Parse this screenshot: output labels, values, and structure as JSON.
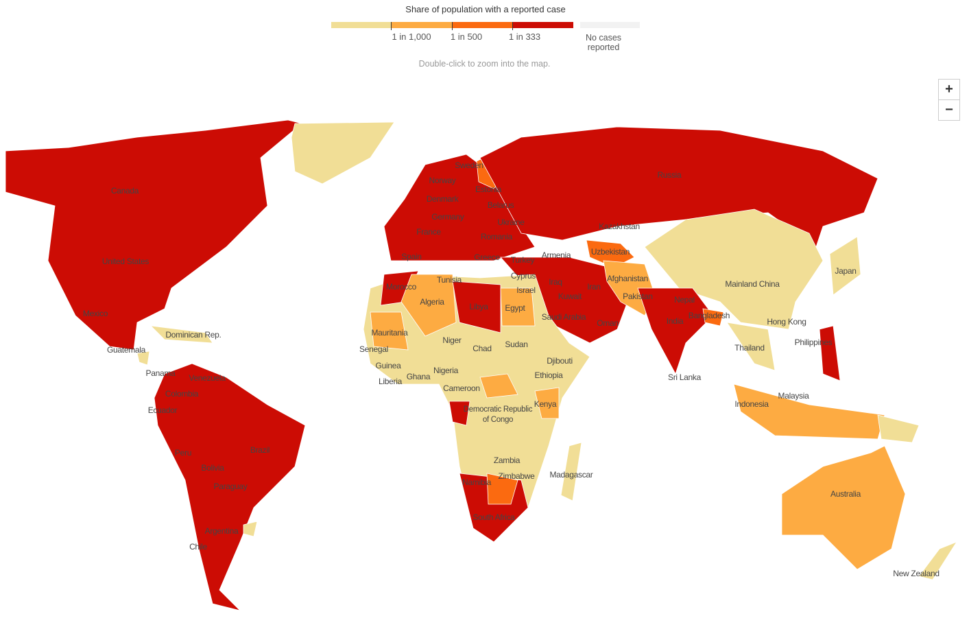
{
  "legend": {
    "title": "Share of population with a reported case",
    "ticks": [
      "1 in 1,000",
      "1 in 500",
      "1 in 333"
    ],
    "no_data": "No cases reported"
  },
  "note": "Double-click to zoom into the map.",
  "zoom": [
    "+",
    "−"
  ],
  "labels": [
    "Canada",
    "United States",
    "Mexico",
    "Guatemala",
    "Dominican Rep.",
    "Panama",
    "Venezuela",
    "Colombia",
    "Ecuador",
    "Peru",
    "Brazil",
    "Bolivia",
    "Paraguay",
    "Argentina",
    "Chile",
    "Sweden",
    "Norway",
    "Estonia",
    "Denmark",
    "Belarus",
    "Germany",
    "Ukraine",
    "France",
    "Romania",
    "Spain",
    "Greece",
    "Turkey",
    "Armenia",
    "Cyprus",
    "Israel",
    "Iraq",
    "Kuwait",
    "Iran",
    "Saudi Arabia",
    "Oman",
    "Russia",
    "Kazakhstan",
    "Uzbekistan",
    "Afghanistan",
    "Pakistan",
    "Nepal",
    "India",
    "Bangladesh",
    "Sri Lanka",
    "Mainland China",
    "Hong Kong",
    "Japan",
    "Thailand",
    "Philippines",
    "Malaysia",
    "Indonesia",
    "Morocco",
    "Tunisia",
    "Algeria",
    "Libya",
    "Egypt",
    "Mauritania",
    "Senegal",
    "Niger",
    "Chad",
    "Sudan",
    "Djibouti",
    "Guinea",
    "Nigeria",
    "Ethiopia",
    "Ghana",
    "Liberia",
    "Cameroon",
    "Kenya",
    "Democratic Republic of Congo",
    "Zambia",
    "Zimbabwe",
    "Madagascar",
    "Namibia",
    "South Africa",
    "Australia",
    "New Zealand"
  ]
}
